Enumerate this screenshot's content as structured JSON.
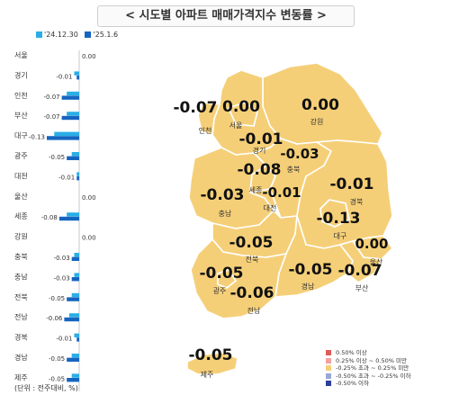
{
  "title": "< 시도별 아파트 매매가격지수 변동률 >",
  "unit_note": "(단위 : 전주대비, %)",
  "colors": {
    "prev": "#29aee6",
    "curr": "#1565c0",
    "land": "#f5cf78",
    "border": "#ffffff",
    "outline": "#d1a24a"
  },
  "chart_data": {
    "type": "bar",
    "orientation": "horizontal",
    "categories": [
      "서울",
      "경기",
      "인천",
      "부산",
      "대구",
      "광주",
      "대전",
      "울산",
      "세종",
      "강원",
      "충북",
      "충남",
      "전북",
      "전남",
      "경북",
      "경남",
      "제주"
    ],
    "series": [
      {
        "name": "'24.12.30",
        "values": [
          0.0,
          -0.02,
          -0.05,
          -0.05,
          -0.1,
          -0.03,
          -0.01,
          0.0,
          -0.05,
          0.0,
          -0.02,
          -0.02,
          -0.03,
          -0.04,
          -0.02,
          -0.03,
          -0.03
        ]
      },
      {
        "name": "'25.1.6",
        "values": [
          0.0,
          -0.01,
          -0.07,
          -0.07,
          -0.13,
          -0.05,
          -0.01,
          0.0,
          -0.08,
          0.0,
          -0.03,
          -0.03,
          -0.05,
          -0.06,
          -0.01,
          -0.05,
          -0.05
        ]
      }
    ],
    "value_labels": [
      "0.00",
      "-0.01",
      "-0.07",
      "-0.07",
      "-0.13",
      "-0.05",
      "-0.01",
      "0.00",
      "-0.08",
      "0.00",
      "-0.03",
      "-0.03",
      "-0.05",
      "-0.06",
      "-0.01",
      "-0.05",
      "-0.05"
    ],
    "xlim": [
      -0.14,
      0.0
    ],
    "legend": "top-left"
  },
  "map_labels": [
    {
      "name": "인천",
      "value": "-0.07"
    },
    {
      "name": "서울",
      "value": "0.00"
    },
    {
      "name": "강원",
      "value": "0.00"
    },
    {
      "name": "경기",
      "value": "-0.01"
    },
    {
      "name": "충북",
      "value": "-0.03"
    },
    {
      "name": "세종",
      "value": "-0.08"
    },
    {
      "name": "대전",
      "value": "-0.01"
    },
    {
      "name": "충남",
      "value": "-0.03"
    },
    {
      "name": "경북",
      "value": "-0.01"
    },
    {
      "name": "대구",
      "value": "-0.13"
    },
    {
      "name": "전북",
      "value": "-0.05"
    },
    {
      "name": "울산",
      "value": "0.00"
    },
    {
      "name": "광주",
      "value": "-0.05"
    },
    {
      "name": "경남",
      "value": "-0.05"
    },
    {
      "name": "부산",
      "value": "-0.07"
    },
    {
      "name": "전남",
      "value": "-0.06"
    },
    {
      "name": "제주",
      "value": "-0.05"
    }
  ],
  "map_legend": [
    {
      "label": "0.50% 이상",
      "color": "#e05a5a"
    },
    {
      "label": "0.25% 이상 ~ 0.50% 미만",
      "color": "#f2a0a0"
    },
    {
      "label": "-0.25% 초과 ~ 0.25% 미만",
      "color": "#f5cf78"
    },
    {
      "label": "-0.50% 초과 ~ -0.25% 이하",
      "color": "#9aa7d8"
    },
    {
      "label": "-0.50% 이하",
      "color": "#2c3f9e"
    }
  ]
}
